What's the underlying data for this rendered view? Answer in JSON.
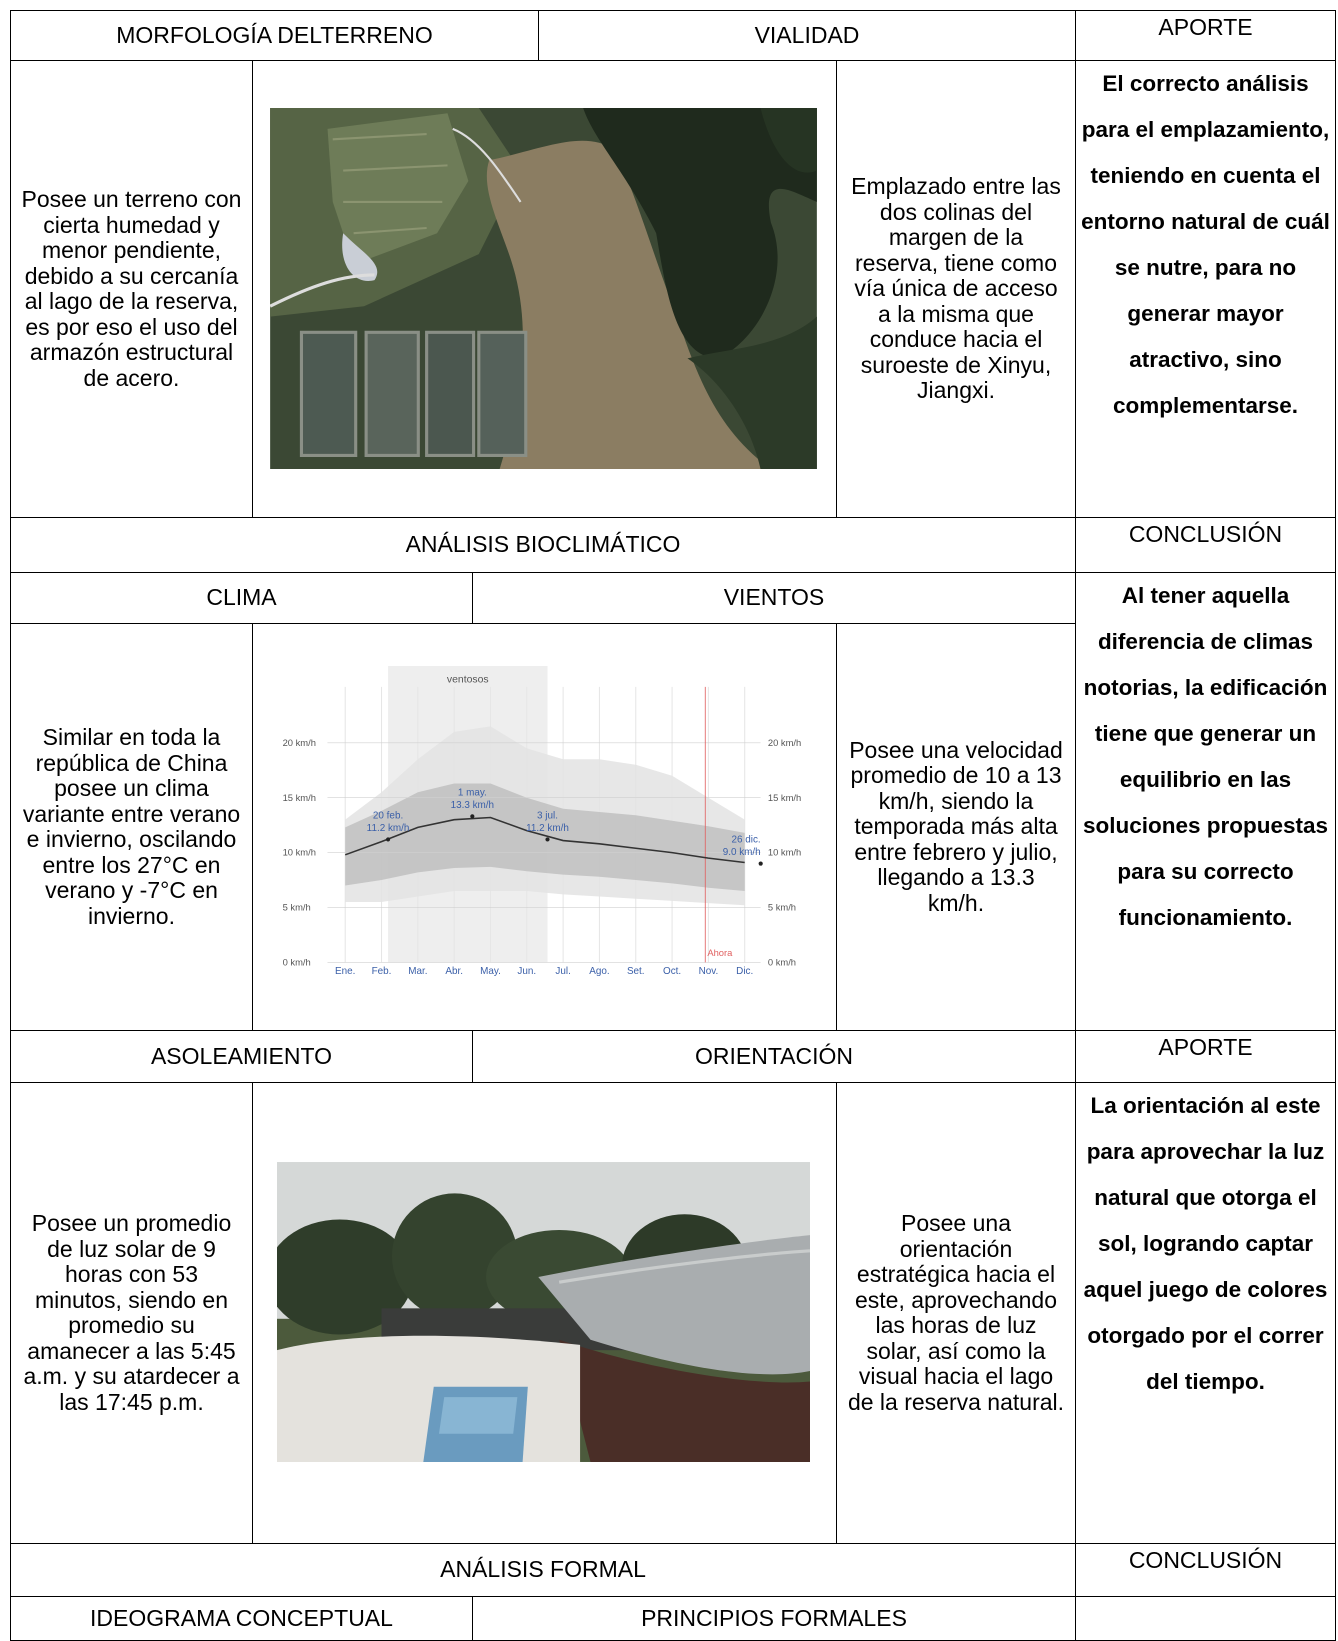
{
  "morfologia": {
    "title": "MORFOLOGÍA DELTERRENO",
    "text": "Posee un terreno con cierta humedad y menor pendiente, debido a su cercanía al lago de la reserva, es por eso el uso del armazón estructural de acero."
  },
  "vialidad": {
    "title": "VIALIDAD",
    "text": "Emplazado entre las dos colinas del margen de la reserva, tiene como vía única de acceso a la misma que conduce hacia el suroeste de Xinyu, Jiangxi."
  },
  "aporte_1": {
    "title": "APORTE",
    "text": "El correcto análisis para el emplazamiento, teniendo en cuenta el entorno natural de cuál se nutre, para no generar mayor atractivo, sino complementarse."
  },
  "bioclimatico": {
    "title": "ANÁLISIS BIOCLIMÁTICO"
  },
  "conclusion_1": {
    "title": "CONCLUSIÓN",
    "text": "Al tener aquella diferencia de climas notorias, la edificación tiene que generar un equilibrio en las soluciones propuestas para su correcto funcionamiento."
  },
  "clima": {
    "title": "CLIMA",
    "text": "Similar en toda la república de China posee un clima variante entre verano e invierno, oscilando entre los 27°C en verano y -7°C en invierno."
  },
  "vientos": {
    "title": "VIENTOS",
    "text": "Posee una velocidad promedio de 10 a 13 km/h, siendo la temporada más alta entre febrero y julio, llegando a 13.3 km/h."
  },
  "wind_chart": {
    "type": "area",
    "band_label": "ventosos",
    "now_label": "Ahora",
    "categories": [
      "Ene.",
      "Feb.",
      "Mar.",
      "Abr.",
      "May.",
      "Jun.",
      "Jul.",
      "Ago.",
      "Set.",
      "Oct.",
      "Nov.",
      "Dic."
    ],
    "ylim": [
      0,
      27
    ],
    "yticks": [
      {
        "value": 0,
        "label": "0 km/h"
      },
      {
        "value": 5,
        "label": "5 km/h"
      },
      {
        "value": 10,
        "label": "10 km/h"
      },
      {
        "value": 15,
        "label": "15 km/h"
      },
      {
        "value": 20,
        "label": "20 km/h"
      }
    ],
    "bands": [
      {
        "color": "#e3e3e3",
        "upper": [
          13,
          15.5,
          18.5,
          21,
          21.5,
          19.5,
          18.5,
          18.5,
          18,
          17,
          15,
          13
        ],
        "lower": [
          5.5,
          5.5,
          6,
          6.5,
          6.5,
          6.5,
          6.2,
          6,
          5.8,
          5.6,
          5.4,
          5.2
        ]
      },
      {
        "color": "#bfbfbf",
        "upper": [
          12.3,
          13.8,
          15.5,
          16.3,
          16.3,
          15,
          14,
          13.7,
          13.4,
          12.9,
          12.4,
          11.8
        ],
        "lower": [
          7,
          7.5,
          8.2,
          8.6,
          8.7,
          8.3,
          8,
          7.8,
          7.5,
          7.2,
          6.8,
          6.5
        ]
      }
    ],
    "mean": {
      "color": "#333333",
      "values": [
        9.8,
        11,
        12.3,
        13,
        13.2,
        12,
        11.1,
        10.8,
        10.4,
        10,
        9.5,
        9.1
      ]
    },
    "annotations": [
      {
        "x": 1.18,
        "date": "20 feb.",
        "value": 11.2,
        "label": "11.2 km/h"
      },
      {
        "x": 3.5,
        "date": "1 may.",
        "value": 13.3,
        "label": "13.3 km/h"
      },
      {
        "x": 5.57,
        "date": "3 jul.",
        "value": 11.2,
        "label": "11.2 km/h"
      },
      {
        "x": 11.44,
        "date": "26 dic.",
        "value": 9.0,
        "label": "9.0 km/h"
      }
    ]
  },
  "asoleamiento": {
    "title": "ASOLEAMIENTO",
    "text": "Posee un promedio de luz solar de 9 horas con 53 minutos, siendo en promedio su amanecer a las 5:45 a.m. y su atardecer a las 17:45 p.m."
  },
  "orientacion": {
    "title": "ORIENTACIÓN",
    "text": "Posee una orientación estratégica hacia el este, aprovechando las horas de luz solar, así como la visual hacia el lago de la reserva natural."
  },
  "aporte_2": {
    "title": "APORTE",
    "text": "La orientación al este para aprovechar la luz natural que otorga el sol, logrando captar aquel juego de colores otorgado por el correr del tiempo."
  },
  "formal": {
    "title": "ANÁLISIS FORMAL"
  },
  "conclusion_2": {
    "title": "CONCLUSIÓN"
  },
  "ideograma": {
    "title": "IDEOGRAMA CONCEPTUAL"
  },
  "principios": {
    "title": "PRINCIPIOS FORMALES"
  }
}
